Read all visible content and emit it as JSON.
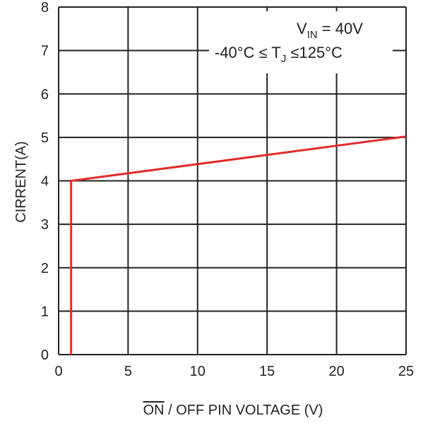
{
  "chart_data": {
    "type": "line",
    "xlabel_overline": "ON",
    "xlabel_rest": " / OFF PIN VOLTAGE (V)",
    "ylabel": "CIRRENT(A)",
    "xlim": [
      0,
      25
    ],
    "ylim": [
      0,
      8
    ],
    "x_ticks": [
      "0",
      "5",
      "10",
      "15",
      "20",
      "25"
    ],
    "y_ticks": [
      "0",
      "1",
      "2",
      "3",
      "4",
      "5",
      "6",
      "7",
      "8"
    ],
    "grid": true,
    "annotations": {
      "line1_prefix": "V",
      "line1_sub": "IN",
      "line1_suffix": " =  40V",
      "line2_prefix": "-40°C ≤ T",
      "line2_sub": "J",
      "line2_suffix": " ≤125°C"
    },
    "series": [
      {
        "color": "#e02b2b",
        "x": [
          0.9,
          0.9,
          25
        ],
        "y": [
          0,
          4.0,
          5.02
        ]
      }
    ]
  }
}
